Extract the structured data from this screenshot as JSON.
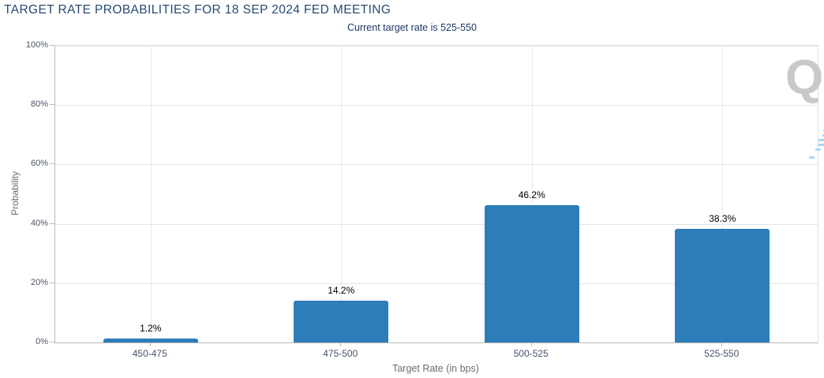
{
  "chart_data": {
    "type": "bar",
    "title": "TARGET RATE PROBABILITIES FOR 18 SEP 2024 FED MEETING",
    "subtitle": "Current target rate is 525-550",
    "categories": [
      "450-475",
      "475-500",
      "500-525",
      "525-550"
    ],
    "values": [
      1.2,
      14.2,
      46.2,
      38.3
    ],
    "data_labels": [
      "1.2%",
      "14.2%",
      "46.2%",
      "38.3%"
    ],
    "xlabel": "Target Rate (in bps)",
    "ylabel": "Probability",
    "ylim": [
      0,
      100
    ],
    "yticks": [
      0,
      20,
      40,
      60,
      80,
      100
    ],
    "ytick_labels": [
      "0%",
      "20%",
      "40%",
      "60%",
      "80%",
      "100%"
    ],
    "grid": true,
    "legend": false,
    "bar_color": "#2d7db8"
  },
  "icons": {
    "menu": "hamburger-menu-icon",
    "watermark": "q-watermark"
  },
  "watermark": {
    "letter": "Q"
  },
  "colors": {
    "title": "#264a73",
    "subtitle": "#1f3864",
    "bar": "#2d7db8",
    "data_label": "#000000",
    "axis_label": "#4c5560",
    "xaxis_label": "#47536b",
    "axis_title": "#6d6d6d",
    "gridline": "#e6e6e6",
    "axis_line": "#b9b9b9",
    "menu_icon": "#666666",
    "watermark_q": "#c9c9c9",
    "watermark_dash": "#a6d6f0"
  }
}
